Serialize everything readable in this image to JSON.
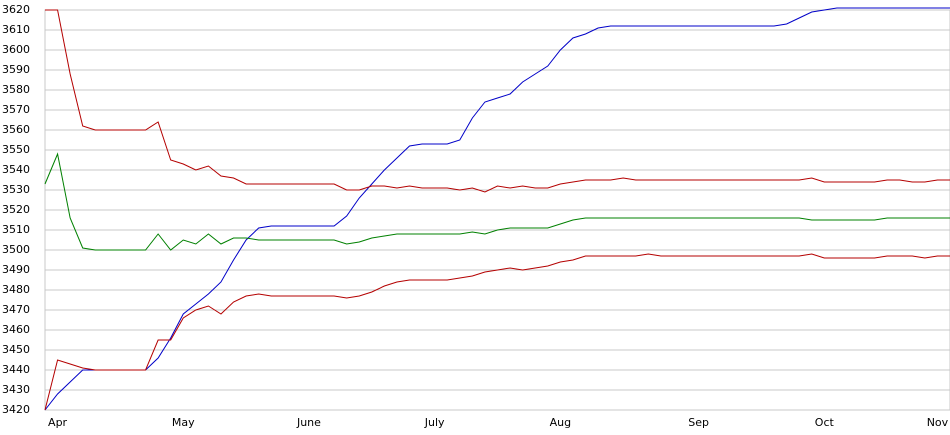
{
  "chart_data": {
    "type": "line",
    "categories": [
      null,
      "Apr",
      null,
      null,
      null,
      null,
      null,
      null,
      null,
      null,
      null,
      "May",
      null,
      null,
      null,
      null,
      null,
      null,
      null,
      null,
      null,
      "June",
      null,
      null,
      null,
      null,
      null,
      null,
      null,
      null,
      null,
      "July",
      null,
      null,
      null,
      null,
      null,
      null,
      null,
      null,
      null,
      "Aug",
      null,
      null,
      null,
      null,
      null,
      null,
      null,
      null,
      null,
      null,
      "Sep",
      null,
      null,
      null,
      null,
      null,
      null,
      null,
      null,
      null,
      "Oct",
      null,
      null,
      null,
      null,
      null,
      null,
      null,
      null,
      "Nov",
      null
    ],
    "series": [
      {
        "color": "#0000c8",
        "values": [
          3420,
          3428,
          3434,
          3440,
          3440,
          3440,
          3440,
          3440,
          3440,
          3446,
          3456,
          3468,
          3473,
          3478,
          3484,
          3495,
          3505,
          3511,
          3512,
          3512,
          3512,
          3512,
          3512,
          3512,
          3517,
          3526,
          3533,
          3540,
          3546,
          3552,
          3553,
          3553,
          3553,
          3555,
          3566,
          3574,
          3576,
          3578,
          3584,
          3588,
          3592,
          3600,
          3606,
          3608,
          3611,
          3612,
          3612,
          3612,
          3612,
          3612,
          3612,
          3612,
          3612,
          3612,
          3612,
          3612,
          3612,
          3612,
          3612,
          3613,
          3616,
          3619,
          3620,
          3621,
          3621,
          3621,
          3621,
          3621,
          3621,
          3621,
          3621,
          3621,
          3621
        ]
      },
      {
        "color": "#b40000",
        "values": [
          3620,
          3620,
          3588,
          3562,
          3560,
          3560,
          3560,
          3560,
          3560,
          3564,
          3545,
          3543,
          3540,
          3542,
          3537,
          3536,
          3533,
          3533,
          3533,
          3533,
          3533,
          3533,
          3533,
          3533,
          3530,
          3530,
          3532,
          3532,
          3531,
          3532,
          3531,
          3531,
          3531,
          3530,
          3531,
          3529,
          3532,
          3531,
          3532,
          3531,
          3531,
          3533,
          3534,
          3535,
          3535,
          3535,
          3536,
          3535,
          3535,
          3535,
          3535,
          3535,
          3535,
          3535,
          3535,
          3535,
          3535,
          3535,
          3535,
          3535,
          3535,
          3536,
          3534,
          3534,
          3534,
          3534,
          3534,
          3535,
          3535,
          3534,
          3534,
          3535,
          3535
        ]
      },
      {
        "color": "#008000",
        "values": [
          3533,
          3548,
          3516,
          3501,
          3500,
          3500,
          3500,
          3500,
          3500,
          3508,
          3500,
          3505,
          3503,
          3508,
          3503,
          3506,
          3506,
          3505,
          3505,
          3505,
          3505,
          3505,
          3505,
          3505,
          3503,
          3504,
          3506,
          3507,
          3508,
          3508,
          3508,
          3508,
          3508,
          3508,
          3509,
          3508,
          3510,
          3511,
          3511,
          3511,
          3511,
          3513,
          3515,
          3516,
          3516,
          3516,
          3516,
          3516,
          3516,
          3516,
          3516,
          3516,
          3516,
          3516,
          3516,
          3516,
          3516,
          3516,
          3516,
          3516,
          3516,
          3515,
          3515,
          3515,
          3515,
          3515,
          3515,
          3516,
          3516,
          3516,
          3516,
          3516,
          3516
        ]
      },
      {
        "color": "#b40000",
        "values": [
          3420,
          3445,
          3443,
          3441,
          3440,
          3440,
          3440,
          3440,
          3440,
          3455,
          3455,
          3466,
          3470,
          3472,
          3468,
          3474,
          3477,
          3478,
          3477,
          3477,
          3477,
          3477,
          3477,
          3477,
          3476,
          3477,
          3479,
          3482,
          3484,
          3485,
          3485,
          3485,
          3485,
          3486,
          3487,
          3489,
          3490,
          3491,
          3490,
          3491,
          3492,
          3494,
          3495,
          3497,
          3497,
          3497,
          3497,
          3497,
          3498,
          3497,
          3497,
          3497,
          3497,
          3497,
          3497,
          3497,
          3497,
          3497,
          3497,
          3497,
          3497,
          3498,
          3496,
          3496,
          3496,
          3496,
          3496,
          3497,
          3497,
          3497,
          3496,
          3497,
          3497
        ]
      }
    ],
    "ylim": [
      3420,
      3620
    ],
    "yticks": [
      3420,
      3430,
      3440,
      3450,
      3460,
      3470,
      3480,
      3490,
      3500,
      3510,
      3520,
      3530,
      3540,
      3550,
      3560,
      3570,
      3580,
      3590,
      3600,
      3610,
      3620
    ],
    "grid": true
  }
}
